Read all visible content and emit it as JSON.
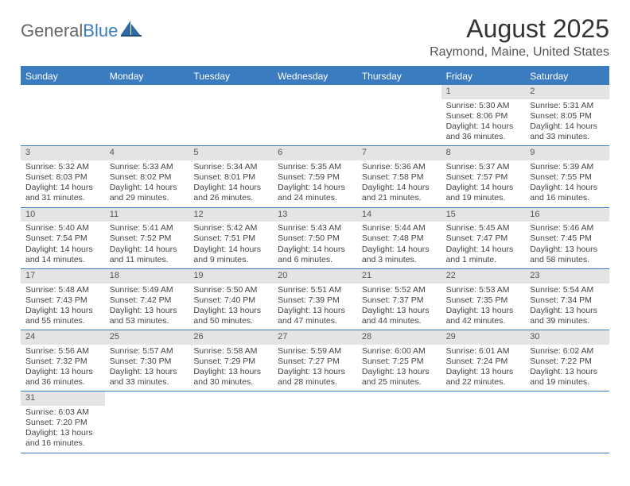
{
  "brand": {
    "part1": "General",
    "part2": "Blue"
  },
  "title": "August 2025",
  "location": "Raymond, Maine, United States",
  "colors": {
    "accent": "#3b7bbf",
    "dow_bg": "#3b7bbf",
    "dow_text": "#ffffff",
    "daynum_bg": "#e4e4e4",
    "body_text": "#444444",
    "title_text": "#333333"
  },
  "dow": [
    "Sunday",
    "Monday",
    "Tuesday",
    "Wednesday",
    "Thursday",
    "Friday",
    "Saturday"
  ],
  "weeks": [
    [
      null,
      null,
      null,
      null,
      null,
      {
        "n": "1",
        "sunrise": "Sunrise: 5:30 AM",
        "sunset": "Sunset: 8:06 PM",
        "daylight": "Daylight: 14 hours and 36 minutes."
      },
      {
        "n": "2",
        "sunrise": "Sunrise: 5:31 AM",
        "sunset": "Sunset: 8:05 PM",
        "daylight": "Daylight: 14 hours and 33 minutes."
      }
    ],
    [
      {
        "n": "3",
        "sunrise": "Sunrise: 5:32 AM",
        "sunset": "Sunset: 8:03 PM",
        "daylight": "Daylight: 14 hours and 31 minutes."
      },
      {
        "n": "4",
        "sunrise": "Sunrise: 5:33 AM",
        "sunset": "Sunset: 8:02 PM",
        "daylight": "Daylight: 14 hours and 29 minutes."
      },
      {
        "n": "5",
        "sunrise": "Sunrise: 5:34 AM",
        "sunset": "Sunset: 8:01 PM",
        "daylight": "Daylight: 14 hours and 26 minutes."
      },
      {
        "n": "6",
        "sunrise": "Sunrise: 5:35 AM",
        "sunset": "Sunset: 7:59 PM",
        "daylight": "Daylight: 14 hours and 24 minutes."
      },
      {
        "n": "7",
        "sunrise": "Sunrise: 5:36 AM",
        "sunset": "Sunset: 7:58 PM",
        "daylight": "Daylight: 14 hours and 21 minutes."
      },
      {
        "n": "8",
        "sunrise": "Sunrise: 5:37 AM",
        "sunset": "Sunset: 7:57 PM",
        "daylight": "Daylight: 14 hours and 19 minutes."
      },
      {
        "n": "9",
        "sunrise": "Sunrise: 5:39 AM",
        "sunset": "Sunset: 7:55 PM",
        "daylight": "Daylight: 14 hours and 16 minutes."
      }
    ],
    [
      {
        "n": "10",
        "sunrise": "Sunrise: 5:40 AM",
        "sunset": "Sunset: 7:54 PM",
        "daylight": "Daylight: 14 hours and 14 minutes."
      },
      {
        "n": "11",
        "sunrise": "Sunrise: 5:41 AM",
        "sunset": "Sunset: 7:52 PM",
        "daylight": "Daylight: 14 hours and 11 minutes."
      },
      {
        "n": "12",
        "sunrise": "Sunrise: 5:42 AM",
        "sunset": "Sunset: 7:51 PM",
        "daylight": "Daylight: 14 hours and 9 minutes."
      },
      {
        "n": "13",
        "sunrise": "Sunrise: 5:43 AM",
        "sunset": "Sunset: 7:50 PM",
        "daylight": "Daylight: 14 hours and 6 minutes."
      },
      {
        "n": "14",
        "sunrise": "Sunrise: 5:44 AM",
        "sunset": "Sunset: 7:48 PM",
        "daylight": "Daylight: 14 hours and 3 minutes."
      },
      {
        "n": "15",
        "sunrise": "Sunrise: 5:45 AM",
        "sunset": "Sunset: 7:47 PM",
        "daylight": "Daylight: 14 hours and 1 minute."
      },
      {
        "n": "16",
        "sunrise": "Sunrise: 5:46 AM",
        "sunset": "Sunset: 7:45 PM",
        "daylight": "Daylight: 13 hours and 58 minutes."
      }
    ],
    [
      {
        "n": "17",
        "sunrise": "Sunrise: 5:48 AM",
        "sunset": "Sunset: 7:43 PM",
        "daylight": "Daylight: 13 hours and 55 minutes."
      },
      {
        "n": "18",
        "sunrise": "Sunrise: 5:49 AM",
        "sunset": "Sunset: 7:42 PM",
        "daylight": "Daylight: 13 hours and 53 minutes."
      },
      {
        "n": "19",
        "sunrise": "Sunrise: 5:50 AM",
        "sunset": "Sunset: 7:40 PM",
        "daylight": "Daylight: 13 hours and 50 minutes."
      },
      {
        "n": "20",
        "sunrise": "Sunrise: 5:51 AM",
        "sunset": "Sunset: 7:39 PM",
        "daylight": "Daylight: 13 hours and 47 minutes."
      },
      {
        "n": "21",
        "sunrise": "Sunrise: 5:52 AM",
        "sunset": "Sunset: 7:37 PM",
        "daylight": "Daylight: 13 hours and 44 minutes."
      },
      {
        "n": "22",
        "sunrise": "Sunrise: 5:53 AM",
        "sunset": "Sunset: 7:35 PM",
        "daylight": "Daylight: 13 hours and 42 minutes."
      },
      {
        "n": "23",
        "sunrise": "Sunrise: 5:54 AM",
        "sunset": "Sunset: 7:34 PM",
        "daylight": "Daylight: 13 hours and 39 minutes."
      }
    ],
    [
      {
        "n": "24",
        "sunrise": "Sunrise: 5:56 AM",
        "sunset": "Sunset: 7:32 PM",
        "daylight": "Daylight: 13 hours and 36 minutes."
      },
      {
        "n": "25",
        "sunrise": "Sunrise: 5:57 AM",
        "sunset": "Sunset: 7:30 PM",
        "daylight": "Daylight: 13 hours and 33 minutes."
      },
      {
        "n": "26",
        "sunrise": "Sunrise: 5:58 AM",
        "sunset": "Sunset: 7:29 PM",
        "daylight": "Daylight: 13 hours and 30 minutes."
      },
      {
        "n": "27",
        "sunrise": "Sunrise: 5:59 AM",
        "sunset": "Sunset: 7:27 PM",
        "daylight": "Daylight: 13 hours and 28 minutes."
      },
      {
        "n": "28",
        "sunrise": "Sunrise: 6:00 AM",
        "sunset": "Sunset: 7:25 PM",
        "daylight": "Daylight: 13 hours and 25 minutes."
      },
      {
        "n": "29",
        "sunrise": "Sunrise: 6:01 AM",
        "sunset": "Sunset: 7:24 PM",
        "daylight": "Daylight: 13 hours and 22 minutes."
      },
      {
        "n": "30",
        "sunrise": "Sunrise: 6:02 AM",
        "sunset": "Sunset: 7:22 PM",
        "daylight": "Daylight: 13 hours and 19 minutes."
      }
    ],
    [
      {
        "n": "31",
        "sunrise": "Sunrise: 6:03 AM",
        "sunset": "Sunset: 7:20 PM",
        "daylight": "Daylight: 13 hours and 16 minutes."
      },
      null,
      null,
      null,
      null,
      null,
      null
    ]
  ]
}
